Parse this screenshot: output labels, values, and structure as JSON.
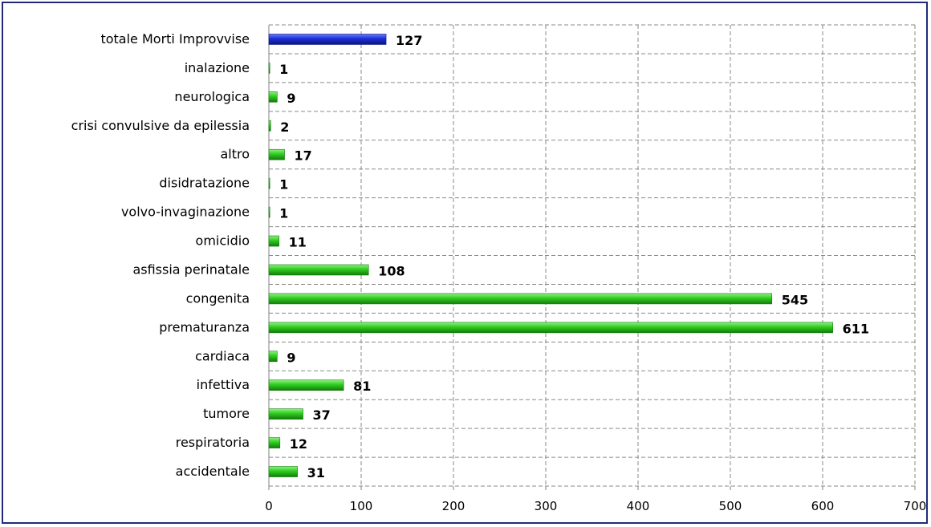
{
  "chart_data": {
    "type": "bar",
    "orientation": "horizontal",
    "categories": [
      "totale Morti Improvvise",
      "inalazione",
      "neurologica",
      "crisi convulsive da epilessia",
      "altro",
      "disidratazione",
      "volvo-invaginazione",
      "omicidio",
      "asfissia perinatale",
      "congenita",
      "prematuranza",
      "cardiaca",
      "infettiva",
      "tumore",
      "respiratoria",
      "accidentale"
    ],
    "values": [
      127,
      1,
      9,
      2,
      17,
      1,
      1,
      11,
      108,
      545,
      611,
      9,
      81,
      37,
      12,
      31
    ],
    "bar_colors": [
      "#1a2fd6",
      "#2ecc1f",
      "#2ecc1f",
      "#2ecc1f",
      "#2ecc1f",
      "#2ecc1f",
      "#2ecc1f",
      "#2ecc1f",
      "#2ecc1f",
      "#2ecc1f",
      "#2ecc1f",
      "#2ecc1f",
      "#2ecc1f",
      "#2ecc1f",
      "#2ecc1f",
      "#2ecc1f"
    ],
    "xlim": [
      0,
      700
    ],
    "xticks": [
      "0",
      "100",
      "200",
      "300",
      "400",
      "500",
      "600",
      "700"
    ],
    "grid": true,
    "grid_style": "dashed",
    "title": "",
    "xlabel": "",
    "ylabel": "",
    "frame_color": "#1f2b7a"
  }
}
